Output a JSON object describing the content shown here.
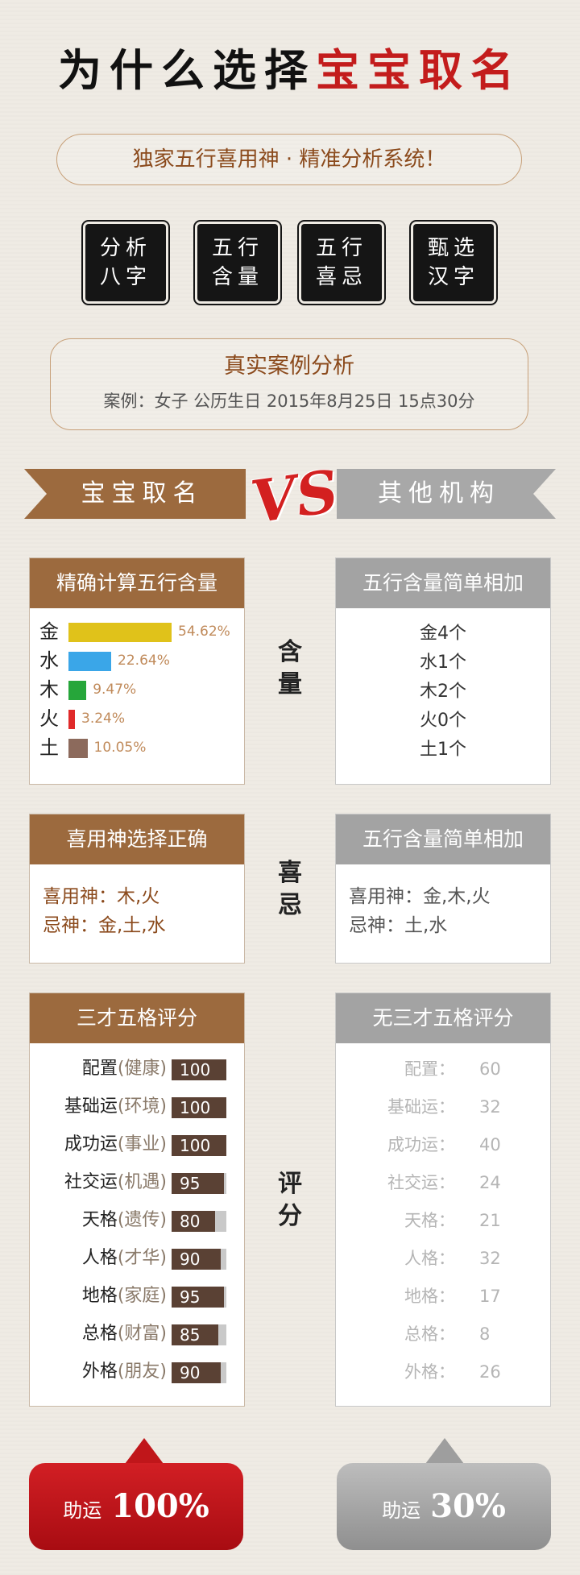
{
  "title": {
    "part1": "为什么选择",
    "part2": "宝宝取名"
  },
  "tagline": "独家五行喜用神 · 精准分析系统！",
  "seals": [
    {
      "line1": "分析",
      "line2": "八字"
    },
    {
      "line1": "五行",
      "line2": "含量"
    },
    {
      "line1": "五行",
      "line2": "喜忌"
    },
    {
      "line1": "甄选",
      "line2": "汉字"
    }
  ],
  "case": {
    "title": "真实案例分析",
    "subtitle": "案例：女子 公历生日 2015年8月25日 15点30分"
  },
  "banner": {
    "left": "宝宝取名",
    "vs": "VS",
    "right": "其他机构"
  },
  "section1": {
    "left_title": "精确计算五行含量",
    "right_title": "五行含量简单相加",
    "mid_label": [
      "含",
      "量"
    ],
    "elements": [
      {
        "name": "金",
        "pct": "54.62%",
        "value": 54.62,
        "color": "#e0c21a"
      },
      {
        "name": "水",
        "pct": "22.64%",
        "value": 22.64,
        "color": "#3aa6e8"
      },
      {
        "name": "木",
        "pct": "9.47%",
        "value": 9.47,
        "color": "#26a63a"
      },
      {
        "name": "火",
        "pct": "3.24%",
        "value": 3.24,
        "color": "#e02a2a"
      },
      {
        "name": "土",
        "pct": "10.05%",
        "value": 10.05,
        "color": "#8c6a5c"
      }
    ],
    "simple": [
      "金4个",
      "水1个",
      "木2个",
      "火0个",
      "土1个"
    ]
  },
  "section2": {
    "left_title": "喜用神选择正确",
    "right_title": "五行含量简单相加",
    "mid_label": [
      "喜",
      "忌"
    ],
    "left_lines": [
      "喜用神：木,火",
      "忌神：金,土,水"
    ],
    "right_lines": [
      "喜用神：金,木,火",
      "忌神：土,水"
    ]
  },
  "section3": {
    "left_title": "三才五格评分",
    "right_title": "无三才五格评分",
    "mid_label": [
      "评",
      "分"
    ],
    "scores": [
      {
        "label": "配置",
        "hint": "(健康)",
        "value": 100
      },
      {
        "label": "基础运",
        "hint": "(环境)",
        "value": 100
      },
      {
        "label": "成功运",
        "hint": "(事业)",
        "value": 100
      },
      {
        "label": "社交运",
        "hint": "(机遇)",
        "value": 95
      },
      {
        "label": "天格",
        "hint": "(遗传)",
        "value": 80
      },
      {
        "label": "人格",
        "hint": "(才华)",
        "value": 90
      },
      {
        "label": "地格",
        "hint": "(家庭)",
        "value": 95
      },
      {
        "label": "总格",
        "hint": "(财富)",
        "value": 85
      },
      {
        "label": "外格",
        "hint": "(朋友)",
        "value": 90
      }
    ],
    "other_scores": [
      {
        "label": "配置：",
        "value": "60"
      },
      {
        "label": "基础运：",
        "value": "32"
      },
      {
        "label": "成功运：",
        "value": "40"
      },
      {
        "label": "社交运：",
        "value": "24"
      },
      {
        "label": "天格：",
        "value": "21"
      },
      {
        "label": "人格：",
        "value": "32"
      },
      {
        "label": "地格：",
        "value": "17"
      },
      {
        "label": "总格：",
        "value": "8"
      },
      {
        "label": "外格：",
        "value": "26"
      }
    ]
  },
  "buttons": {
    "left": {
      "label": "助运",
      "value": "100%"
    },
    "right": {
      "label": "助运",
      "value": "30%"
    }
  }
}
